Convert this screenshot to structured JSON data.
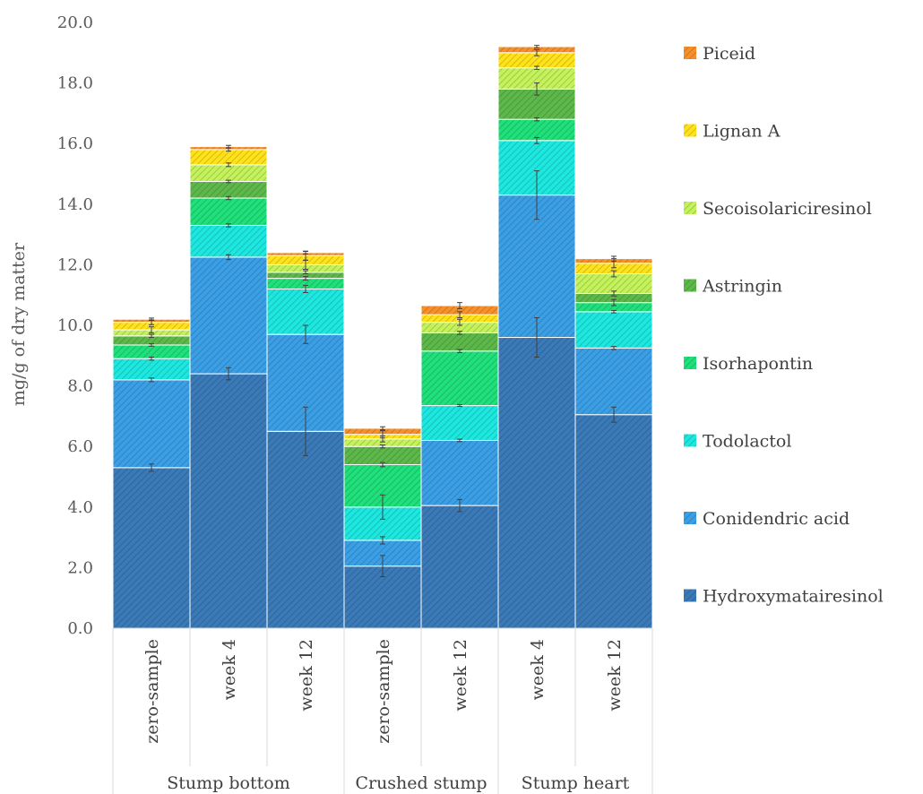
{
  "chart_data": {
    "type": "bar",
    "stacked": true,
    "ylabel": "mg/g of dry matter",
    "ylim": [
      0,
      20
    ],
    "yticks": [
      "0.0",
      "2.0",
      "4.0",
      "6.0",
      "8.0",
      "10.0",
      "12.0",
      "14.0",
      "16.0",
      "18.0",
      "20.0"
    ],
    "grid": false,
    "legend_position": "right",
    "groups": [
      {
        "name": "Stump bottom",
        "categories": [
          "zero-sample",
          "week 4",
          "week 12"
        ]
      },
      {
        "name": "Crushed stump",
        "categories": [
          "zero-sample",
          "week 12"
        ]
      },
      {
        "name": "Stump heart",
        "categories": [
          "week 4",
          "week 12"
        ]
      }
    ],
    "categories": [
      "zero-sample",
      "week 4",
      "week 12",
      "zero-sample",
      "week 12",
      "week 4",
      "week 12"
    ],
    "series": [
      {
        "name": "Hydroxymatairesinol",
        "color": "#3a7ab8",
        "values": [
          5.3,
          8.4,
          6.5,
          2.05,
          4.05,
          9.6,
          7.05
        ],
        "errors": [
          0.12,
          0.2,
          0.8,
          0.35,
          0.2,
          0.65,
          0.25
        ]
      },
      {
        "name": "Conidendric acid",
        "color": "#3b9fe6",
        "values": [
          2.9,
          3.85,
          3.2,
          0.85,
          2.15,
          4.7,
          2.2
        ],
        "errors": [
          0.06,
          0.08,
          0.3,
          0.12,
          0.04,
          0.8,
          0.05
        ]
      },
      {
        "name": "Todolactol",
        "color": "#1de8e0",
        "values": [
          0.7,
          1.05,
          1.5,
          1.1,
          1.15,
          1.8,
          1.2
        ],
        "errors": [
          0.05,
          0.05,
          0.12,
          0.4,
          0.03,
          0.1,
          0.04
        ]
      },
      {
        "name": "Isorhapontin",
        "color": "#1fe07a",
        "values": [
          0.45,
          0.9,
          0.35,
          1.4,
          1.8,
          0.7,
          0.3
        ],
        "errors": [
          0.04,
          0.05,
          0.06,
          0.07,
          0.05,
          0.05,
          0.1
        ]
      },
      {
        "name": "Astringin",
        "color": "#5db84a",
        "values": [
          0.3,
          0.55,
          0.2,
          0.6,
          0.6,
          1.0,
          0.3
        ],
        "errors": [
          0.05,
          0.04,
          0.05,
          0.05,
          0.05,
          0.2,
          0.08
        ]
      },
      {
        "name": "Secoisolariciresinol",
        "color": "#c4f25a",
        "values": [
          0.2,
          0.55,
          0.25,
          0.25,
          0.35,
          0.7,
          0.65
        ],
        "errors": [
          0.1,
          0.06,
          0.15,
          0.1,
          0.1,
          0.05,
          0.1
        ]
      },
      {
        "name": "Lignan A",
        "color": "#ffe21a",
        "values": [
          0.25,
          0.5,
          0.3,
          0.15,
          0.25,
          0.5,
          0.35
        ],
        "errors": [
          0.08,
          0.05,
          0.15,
          0.12,
          0.1,
          0.1,
          0.15
        ]
      },
      {
        "name": "Piceid",
        "color": "#f7902a",
        "values": [
          0.1,
          0.1,
          0.1,
          0.2,
          0.3,
          0.2,
          0.15
        ],
        "errors": [
          0.04,
          0.04,
          0.04,
          0.05,
          0.1,
          0.04,
          0.08
        ]
      }
    ]
  }
}
